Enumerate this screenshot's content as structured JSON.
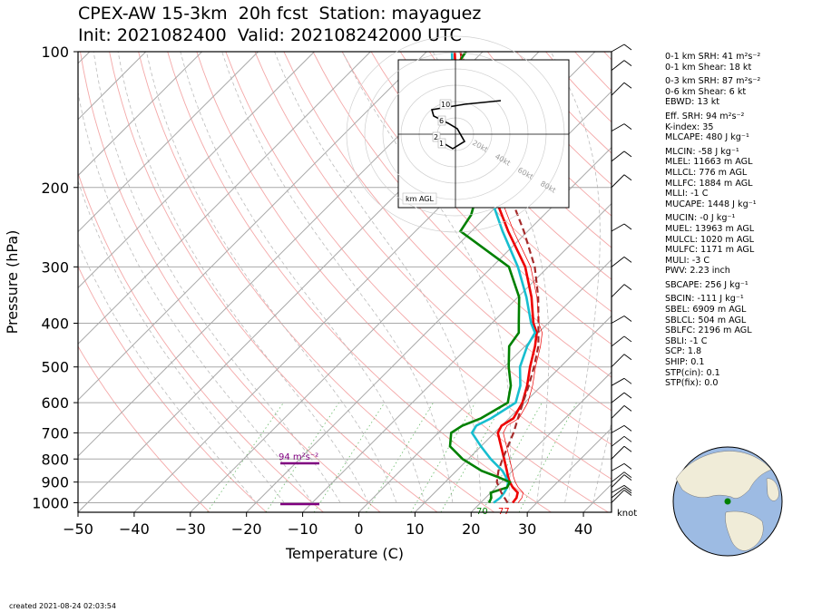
{
  "title": {
    "line1": "CPEX-AW 15-3km  20h fcst  Station: mayaguez",
    "line2": "Init: 2021082400  Valid: 202108242000 UTC"
  },
  "chart_data": {
    "type": "skew-t",
    "xlabel": "Temperature (C)",
    "ylabel": "Pressure (hPa)",
    "xlim": [
      -50,
      45
    ],
    "ylim": [
      1050,
      100
    ],
    "log_pressure_axis": true,
    "x_ticks": [
      -50,
      -40,
      -30,
      -20,
      -10,
      0,
      10,
      20,
      30,
      40
    ],
    "x_tick_labels": [
      "−50",
      "−40",
      "−30",
      "−20",
      "−10",
      "0",
      "10",
      "20",
      "30",
      "40"
    ],
    "p_ticks": [
      100,
      200,
      300,
      400,
      500,
      600,
      700,
      800,
      900,
      1000
    ],
    "series": [
      {
        "color": "#ee0000",
        "p": [
          1000,
          975,
          950,
          925,
          900,
          875,
          850,
          800,
          750,
          700,
          675,
          650,
          600,
          550,
          500,
          450,
          420,
          400,
          350,
          300,
          250,
          200,
          150,
          130,
          100
        ],
        "t": [
          25.7,
          25.5,
          24.8,
          23.0,
          21.5,
          20.2,
          19.0,
          16.4,
          13.6,
          10.6,
          10.0,
          10.8,
          9.6,
          7.4,
          4.6,
          1.8,
          -0.3,
          -2.6,
          -7.6,
          -14.1,
          -23.5,
          -34.3,
          -48.0,
          -55.5,
          -65.0
        ]
      },
      {
        "color": "#17becf",
        "p": [
          1000,
          975,
          950,
          925,
          900,
          875,
          850,
          800,
          750,
          700,
          675,
          650,
          600,
          550,
          500,
          450,
          420,
          400,
          350,
          300,
          250,
          200,
          150,
          130,
          100
        ],
        "t": [
          22.3,
          22.6,
          22.4,
          22.0,
          21.2,
          19.8,
          18.2,
          14.0,
          10.0,
          6.0,
          5.5,
          6.8,
          8.4,
          6.2,
          2.8,
          0.4,
          -0.6,
          -3.0,
          -8.5,
          -15.4,
          -24.5,
          -35.0,
          -48.6,
          -56.0,
          -65.5
        ]
      },
      {
        "color": "#008000",
        "p": [
          1000,
          975,
          950,
          925,
          900,
          875,
          850,
          800,
          750,
          700,
          675,
          650,
          600,
          550,
          500,
          450,
          420,
          400,
          350,
          300,
          250,
          230,
          200,
          175,
          150,
          130,
          100
        ],
        "t": [
          21.5,
          21.0,
          20.0,
          22.0,
          21.5,
          18.2,
          14.5,
          9.0,
          4.5,
          2.3,
          3.0,
          5.0,
          7.0,
          4.5,
          0.8,
          -2.8,
          -3.5,
          -5.2,
          -9.8,
          -17.0,
          -32.0,
          -33.0,
          -36.5,
          -44.0,
          -55.0,
          -60.0,
          -63.0
        ]
      },
      {
        "color": "#a52a2a",
        "dashed": true,
        "p": [
          1000,
          950,
          900,
          850,
          800,
          750,
          700,
          650,
          600,
          550,
          500,
          450,
          400,
          350,
          300,
          250,
          200,
          150,
          100
        ],
        "t": [
          24.8,
          21.9,
          19.2,
          17.5,
          16.1,
          14.8,
          13.4,
          11.6,
          9.7,
          7.7,
          5.3,
          2.4,
          -1.7,
          -6.4,
          -12.4,
          -20.7,
          -31.5,
          -45.0,
          -64.0
        ]
      }
    ],
    "annotations": {
      "surface_t": "77",
      "surface_td": "70",
      "srh_label": "94 m²s⁻²",
      "barb_units": "knot",
      "inset_label": "km AGL",
      "inset_heights": [
        "10",
        "6",
        "2",
        "1"
      ],
      "inset_rings": [
        "20kt",
        "40kt",
        "60kt",
        "80kt"
      ]
    },
    "grid": true
  },
  "stats": [
    {
      "text": "0-1 km SRH: 41 m²s⁻²",
      "gap": false
    },
    {
      "text": "0-1 km Shear: 18 kt",
      "gap": false
    },
    {
      "text": "0-3 km SRH: 87 m²s⁻²",
      "gap": true
    },
    {
      "text": "0-6 km Shear: 6 kt",
      "gap": false
    },
    {
      "text": "EBWD: 13 kt",
      "gap": false
    },
    {
      "text": "Eff. SRH: 94 m²s⁻²",
      "gap": true
    },
    {
      "text": "K-index: 35",
      "gap": false
    },
    {
      "text": "MLCAPE: 480 J kg⁻¹",
      "gap": false
    },
    {
      "text": "MLCIN: -58 J kg⁻¹",
      "gap": true
    },
    {
      "text": "MLEL: 11663 m AGL",
      "gap": false
    },
    {
      "text": "MLLCL: 776 m AGL",
      "gap": false
    },
    {
      "text": "MLLFC: 1884 m AGL",
      "gap": false
    },
    {
      "text": "MLLI: -1 C",
      "gap": false
    },
    {
      "text": "MUCAPE: 1448 J kg⁻¹",
      "gap": false
    },
    {
      "text": "MUCIN: -0 J kg⁻¹",
      "gap": true
    },
    {
      "text": "MUEL: 13963 m AGL",
      "gap": false
    },
    {
      "text": "MULCL: 1020 m AGL",
      "gap": false
    },
    {
      "text": "MULFC: 1171 m AGL",
      "gap": false
    },
    {
      "text": "MULI: -3 C",
      "gap": false
    },
    {
      "text": "PWV: 2.23 inch",
      "gap": false
    },
    {
      "text": "SBCAPE: 256 J kg⁻¹",
      "gap": true
    },
    {
      "text": "SBCIN: -111 J kg⁻¹",
      "gap": true
    },
    {
      "text": "SBEL: 6909 m AGL",
      "gap": false
    },
    {
      "text": "SBLCL: 504 m AGL",
      "gap": false
    },
    {
      "text": "SBLFC: 2196 m AGL",
      "gap": false
    },
    {
      "text": "SBLI: -1 C",
      "gap": false
    },
    {
      "text": "SCP: 1.8",
      "gap": false
    },
    {
      "text": "SHIP: 0.1",
      "gap": false
    },
    {
      "text": "STP(cin): 0.1",
      "gap": false
    },
    {
      "text": "STP(fix): 0.0",
      "gap": false
    }
  ],
  "footer": "created 2021-08-24 02:03:54",
  "colors": {
    "temperature": "#ee0000",
    "virtual_temperature": "#17becf",
    "dewpoint": "#008000",
    "parcel": "#a52a2a",
    "srh_bar": "#800080"
  }
}
